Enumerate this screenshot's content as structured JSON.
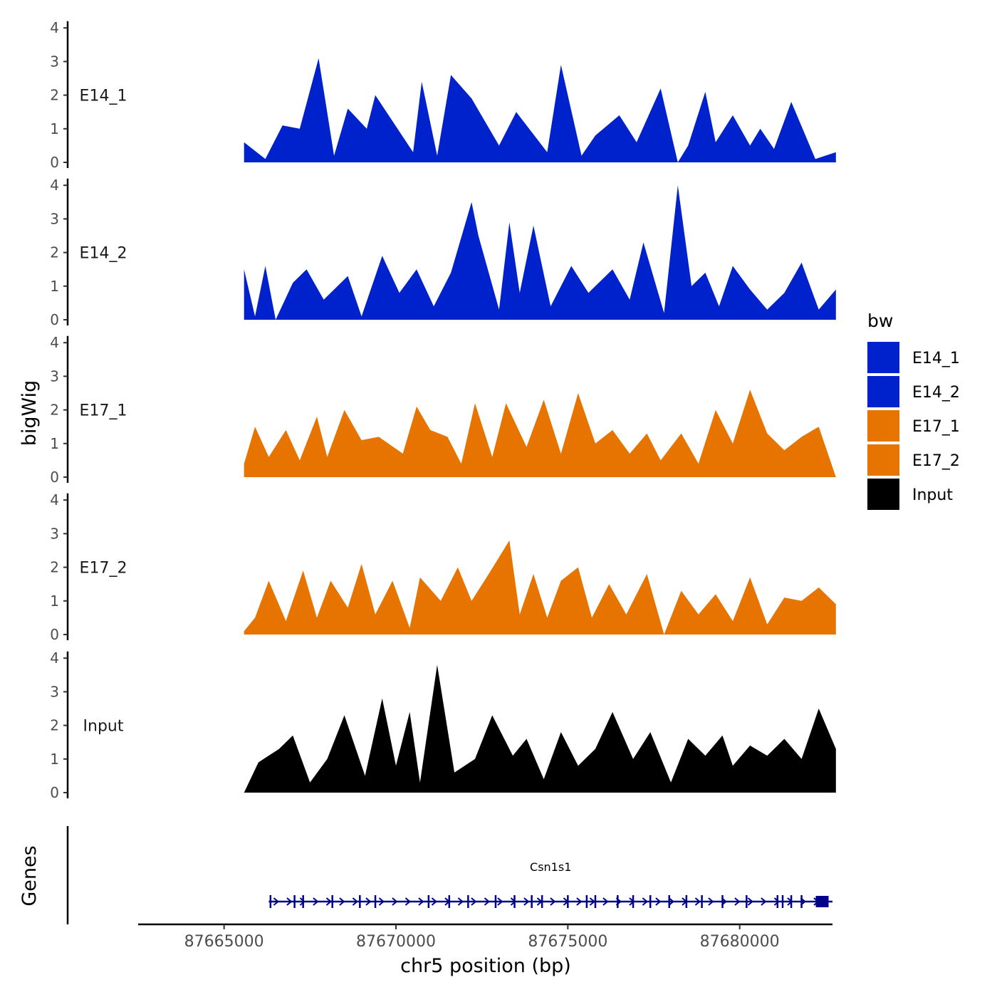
{
  "chart_data": {
    "type": "area",
    "chromosome": "chr5",
    "xlabel": "chr5 position (bp)",
    "ylabel": "bigWig",
    "genes_label": "Genes",
    "xlim": [
      87662500,
      87682700
    ],
    "xticks": [
      87665000,
      87670000,
      87675000,
      87680000
    ],
    "xtick_labels": [
      "87665000",
      "87670000",
      "87675000",
      "87680000"
    ],
    "ylim": [
      0,
      4
    ],
    "yticks": [
      0,
      1,
      2,
      3,
      4
    ],
    "ytick_labels": [
      "0",
      "1",
      "2",
      "3",
      "4"
    ],
    "legend": {
      "title": "bw",
      "position": "right",
      "entries": [
        {
          "label": "E14_1",
          "color": "#0022cc"
        },
        {
          "label": "E14_2",
          "color": "#0022cc"
        },
        {
          "label": "E17_1",
          "color": "#e87400"
        },
        {
          "label": "E17_2",
          "color": "#e87400"
        },
        {
          "label": "Input",
          "color": "#000000"
        }
      ]
    },
    "series": [
      {
        "name": "E14_1",
        "label": "E14_1",
        "color": "#0022cc",
        "x": [
          87665580,
          87666200,
          87666700,
          87667200,
          87667750,
          87668200,
          87668600,
          87669150,
          87669400,
          87670500,
          87670750,
          87671200,
          87671600,
          87672200,
          87673000,
          87673500,
          87674400,
          87674800,
          87675400,
          87675800,
          87676500,
          87677000,
          87677700,
          87678200,
          87678500,
          87679000,
          87679300,
          87679800,
          87680300,
          87680600,
          87681000,
          87681500,
          87682200,
          87682800
        ],
        "values": [
          0.6,
          0.1,
          1.1,
          1.0,
          3.1,
          0.2,
          1.6,
          1.0,
          2.0,
          0.3,
          2.4,
          0.2,
          2.6,
          1.9,
          0.5,
          1.5,
          0.3,
          2.9,
          0.2,
          0.8,
          1.4,
          0.6,
          2.2,
          0.0,
          0.5,
          2.1,
          0.6,
          1.4,
          0.5,
          1.0,
          0.4,
          1.8,
          0.1,
          0.3
        ]
      },
      {
        "name": "E14_2",
        "label": "E14_2",
        "color": "#0022cc",
        "x": [
          87665580,
          87665900,
          87666200,
          87666500,
          87667000,
          87667400,
          87667900,
          87668600,
          87669000,
          87669600,
          87670100,
          87670600,
          87671100,
          87671600,
          87672200,
          87672400,
          87673000,
          87673300,
          87673600,
          87674000,
          87674500,
          87675100,
          87675600,
          87676300,
          87676800,
          87677200,
          87677800,
          87678200,
          87678600,
          87679000,
          87679400,
          87679800,
          87680300,
          87680800,
          87681300,
          87681800,
          87682300,
          87682800
        ],
        "values": [
          1.5,
          0.1,
          1.6,
          0.0,
          1.1,
          1.5,
          0.6,
          1.3,
          0.1,
          1.9,
          0.8,
          1.5,
          0.4,
          1.4,
          3.5,
          2.5,
          0.3,
          2.9,
          0.8,
          2.8,
          0.4,
          1.6,
          0.8,
          1.5,
          0.6,
          2.3,
          0.2,
          4.0,
          1.0,
          1.4,
          0.4,
          1.6,
          0.9,
          0.3,
          0.8,
          1.7,
          0.3,
          0.9
        ]
      },
      {
        "name": "E17_1",
        "label": "E17_1",
        "color": "#e87400",
        "x": [
          87665580,
          87665900,
          87666300,
          87666800,
          87667200,
          87667700,
          87668000,
          87668500,
          87669000,
          87669500,
          87670200,
          87670600,
          87671000,
          87671500,
          87671900,
          87672300,
          87672800,
          87673200,
          87673800,
          87674300,
          87674800,
          87675300,
          87675800,
          87676300,
          87676800,
          87677300,
          87677700,
          87678300,
          87678800,
          87679300,
          87679800,
          87680300,
          87680800,
          87681300,
          87681800,
          87682300,
          87682800
        ],
        "values": [
          0.4,
          1.5,
          0.6,
          1.4,
          0.5,
          1.8,
          0.6,
          2.0,
          1.1,
          1.2,
          0.7,
          2.1,
          1.4,
          1.2,
          0.4,
          2.2,
          0.6,
          2.2,
          0.9,
          2.3,
          0.7,
          2.5,
          1.0,
          1.4,
          0.7,
          1.3,
          0.5,
          1.3,
          0.4,
          2.0,
          1.0,
          2.6,
          1.3,
          0.8,
          1.2,
          1.5,
          0.0
        ]
      },
      {
        "name": "E17_2",
        "label": "E17_2",
        "color": "#e87400",
        "x": [
          87665580,
          87665900,
          87666300,
          87666800,
          87667300,
          87667700,
          87668100,
          87668600,
          87669000,
          87669400,
          87669900,
          87670400,
          87670700,
          87671300,
          87671800,
          87672200,
          87672700,
          87673300,
          87673600,
          87674000,
          87674400,
          87674800,
          87675300,
          87675700,
          87676200,
          87676700,
          87677300,
          87677800,
          87678300,
          87678800,
          87679300,
          87679800,
          87680300,
          87680800,
          87681300,
          87681800,
          87682300,
          87682800
        ],
        "values": [
          0.1,
          0.5,
          1.6,
          0.4,
          1.9,
          0.5,
          1.6,
          0.8,
          2.1,
          0.6,
          1.6,
          0.2,
          1.7,
          1.0,
          2.0,
          1.0,
          1.8,
          2.8,
          0.6,
          1.8,
          0.5,
          1.6,
          2.0,
          0.5,
          1.5,
          0.6,
          1.8,
          0.0,
          1.3,
          0.6,
          1.2,
          0.4,
          1.7,
          0.3,
          1.1,
          1.0,
          1.4,
          0.9
        ]
      },
      {
        "name": "Input",
        "label": "Input",
        "color": "#000000",
        "x": [
          87665580,
          87666000,
          87666600,
          87667000,
          87667500,
          87668000,
          87668500,
          87669100,
          87669600,
          87670000,
          87670400,
          87670700,
          87671200,
          87671700,
          87672300,
          87672800,
          87673400,
          87673800,
          87674300,
          87674800,
          87675300,
          87675800,
          87676300,
          87676900,
          87677400,
          87678000,
          87678500,
          87679000,
          87679500,
          87679800,
          87680300,
          87680800,
          87681300,
          87681800,
          87682300,
          87682800
        ],
        "values": [
          0.0,
          0.9,
          1.3,
          1.7,
          0.3,
          1.0,
          2.3,
          0.5,
          2.8,
          0.8,
          2.4,
          0.3,
          3.8,
          0.6,
          1.0,
          2.3,
          1.1,
          1.6,
          0.4,
          1.8,
          0.8,
          1.3,
          2.4,
          1.0,
          1.8,
          0.3,
          1.6,
          1.1,
          1.7,
          0.8,
          1.4,
          1.1,
          1.6,
          1.0,
          2.5,
          1.3
        ]
      }
    ],
    "gene": {
      "name": "Csn1s1",
      "start": 87666300,
      "end": 87682700,
      "strand": "+",
      "color": "#00008b",
      "exon_positions": [
        87666350,
        87667050,
        87667300,
        87668150,
        87668950,
        87669400,
        87670950,
        87671550,
        87672100,
        87672900,
        87673450,
        87673950,
        87674250,
        87675000,
        87675550,
        87675800,
        87676450,
        87676900,
        87677400,
        87677950,
        87678450,
        87678900,
        87679500,
        87680200,
        87681100,
        87681250,
        87681500,
        87681800,
        87682400
      ]
    }
  }
}
